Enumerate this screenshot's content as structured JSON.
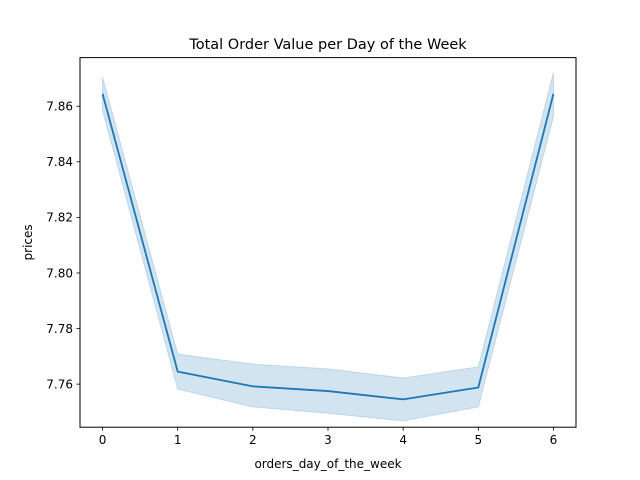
{
  "chart_data": {
    "type": "line",
    "title": "Total Order Value per Day of the Week",
    "xlabel": "orders_day_of_the_week",
    "ylabel": "prices",
    "x": [
      0,
      1,
      2,
      3,
      4,
      5,
      6
    ],
    "xticks": [
      "0",
      "1",
      "2",
      "3",
      "4",
      "5",
      "6"
    ],
    "yticks": [
      "7.76",
      "7.78",
      "7.80",
      "7.82",
      "7.84",
      "7.86"
    ],
    "xlim": [
      -0.3,
      6.3
    ],
    "ylim": [
      7.7445,
      7.8775
    ],
    "series": [
      {
        "values": [
          7.8645,
          7.7645,
          7.7592,
          7.7575,
          7.7545,
          7.7588,
          7.8645
        ],
        "ci_lower": [
          7.8585,
          7.7582,
          7.7518,
          7.7495,
          7.7468,
          7.7518,
          7.8562
        ],
        "ci_upper": [
          7.8705,
          7.7708,
          7.7672,
          7.7655,
          7.7622,
          7.7662,
          7.8722
        ],
        "color": "#1f77b4"
      }
    ],
    "grid": false,
    "legend": false
  }
}
